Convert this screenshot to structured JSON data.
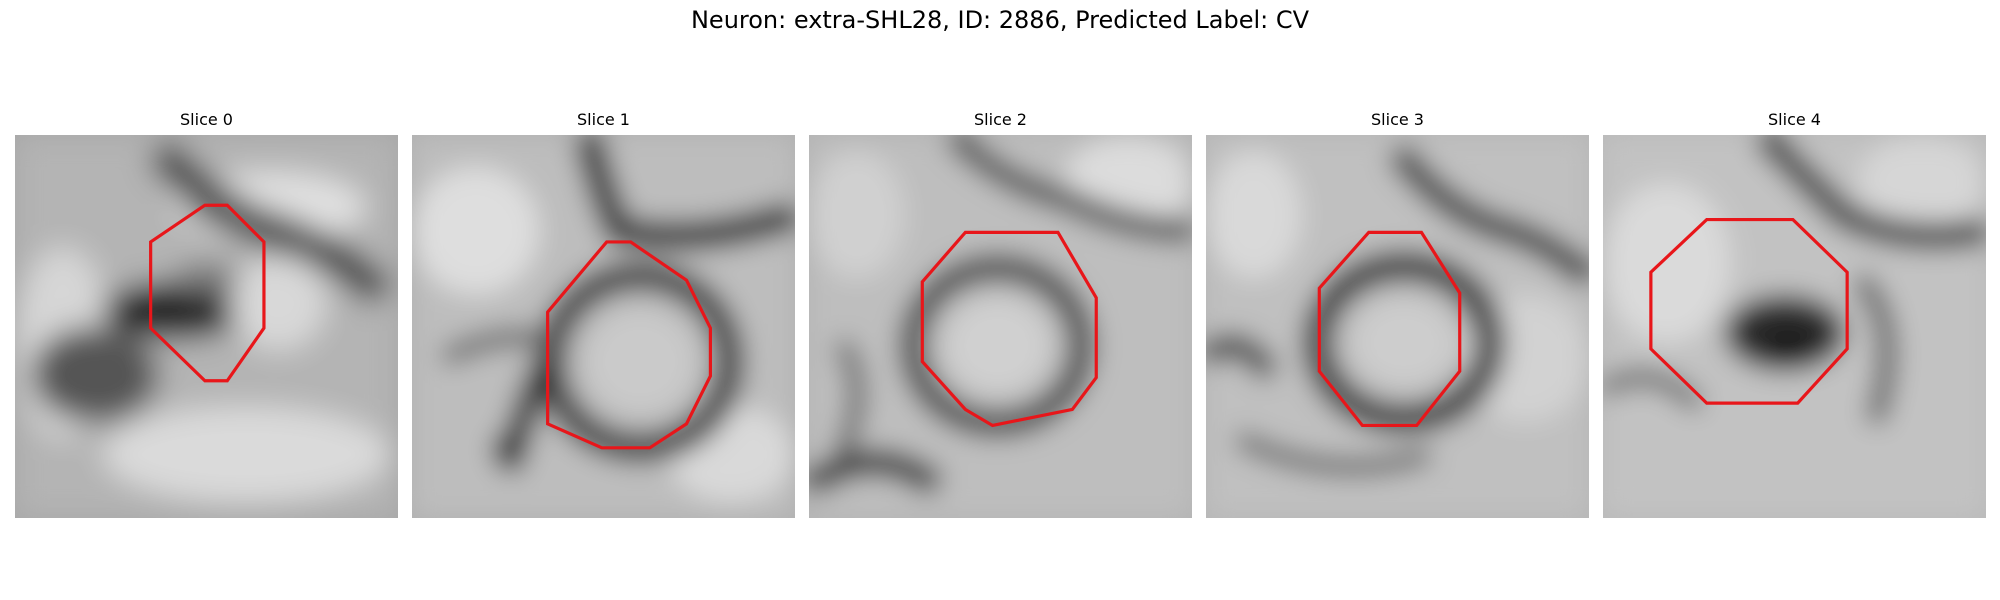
{
  "figure": {
    "title": "Neuron: extra-SHL28, ID: 2886, Predicted Label: CV"
  },
  "panels": [
    {
      "title": "Slice 0"
    },
    {
      "title": "Slice 1"
    },
    {
      "title": "Slice 2"
    },
    {
      "title": "Slice 3"
    },
    {
      "title": "Slice 4"
    }
  ],
  "colors": {
    "outline": "#e8161a",
    "background": "#ffffff"
  }
}
